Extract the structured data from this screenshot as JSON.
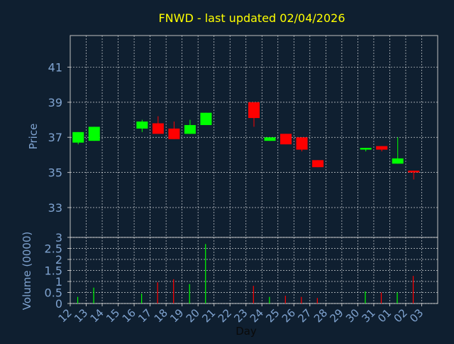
{
  "chart_data": [
    {
      "type": "candlestick",
      "title": "FNWD - last updated 02/04/2026",
      "xlabel": "",
      "ylabel": "Price",
      "ylim": [
        31.3,
        42.8
      ],
      "yticks": [
        33,
        35,
        37,
        39,
        41
      ],
      "grid": true,
      "colors": {
        "up": "#00ff00",
        "down": "#ff0000",
        "title": "#ffff00",
        "axis_text": "#7fa3d0",
        "grid": "#ffffff",
        "background": "#0f1f30"
      },
      "x": [
        "12",
        "13",
        "14",
        "15",
        "16",
        "17",
        "18",
        "19",
        "20",
        "21",
        "22",
        "23",
        "24",
        "25",
        "26",
        "27",
        "28",
        "29",
        "30",
        "31",
        "01",
        "02",
        "03"
      ],
      "candles": [
        {
          "x": "12",
          "open": 36.7,
          "high": 37.3,
          "low": 36.6,
          "close": 37.3
        },
        {
          "x": "13",
          "open": 36.8,
          "high": 37.6,
          "low": 36.8,
          "close": 37.6
        },
        {
          "x": "16",
          "open": 37.5,
          "high": 38.0,
          "low": 37.3,
          "close": 37.9
        },
        {
          "x": "17",
          "open": 37.8,
          "high": 38.2,
          "low": 37.2,
          "close": 37.2
        },
        {
          "x": "18",
          "open": 37.5,
          "high": 37.9,
          "low": 36.9,
          "close": 36.9
        },
        {
          "x": "19",
          "open": 37.2,
          "high": 38.0,
          "low": 37.2,
          "close": 37.7
        },
        {
          "x": "20",
          "open": 37.7,
          "high": 38.4,
          "low": 37.7,
          "close": 38.4
        },
        {
          "x": "23",
          "open": 39.0,
          "high": 39.0,
          "low": 37.6,
          "close": 38.1
        },
        {
          "x": "24",
          "open": 36.8,
          "high": 37.0,
          "low": 36.8,
          "close": 37.0
        },
        {
          "x": "25",
          "open": 37.2,
          "high": 37.2,
          "low": 36.6,
          "close": 36.6
        },
        {
          "x": "26",
          "open": 37.0,
          "high": 37.0,
          "low": 36.2,
          "close": 36.3
        },
        {
          "x": "27",
          "open": 35.7,
          "high": 35.7,
          "low": 35.3,
          "close": 35.3
        },
        {
          "x": "30",
          "open": 36.3,
          "high": 36.4,
          "low": 36.2,
          "close": 36.4
        },
        {
          "x": "31",
          "open": 36.5,
          "high": 36.5,
          "low": 36.2,
          "close": 36.3
        },
        {
          "x": "01",
          "open": 35.5,
          "high": 37.0,
          "low": 35.5,
          "close": 35.8
        },
        {
          "x": "02",
          "open": 35.1,
          "high": 35.1,
          "low": 34.6,
          "close": 35.0
        }
      ]
    },
    {
      "type": "bar",
      "xlabel": "Day",
      "ylabel": "Volume (0000)",
      "ylim": [
        0,
        3
      ],
      "yticks": [
        0,
        0.5,
        1,
        1.5,
        2,
        2.5,
        3
      ],
      "ytick_labels": [
        "0",
        "0.5",
        "1",
        "1.5",
        "2",
        "2.5",
        "3"
      ],
      "grid": true,
      "categories": [
        "12",
        "13",
        "14",
        "15",
        "16",
        "17",
        "18",
        "19",
        "20",
        "21",
        "22",
        "23",
        "24",
        "25",
        "26",
        "27",
        "28",
        "29",
        "30",
        "31",
        "01",
        "02",
        "03"
      ],
      "bars": [
        {
          "x": "12",
          "value": 0.3,
          "color": "#00ff00"
        },
        {
          "x": "13",
          "value": 0.72,
          "color": "#00ff00"
        },
        {
          "x": "16",
          "value": 0.45,
          "color": "#00ff00"
        },
        {
          "x": "17",
          "value": 0.96,
          "color": "#ff0000"
        },
        {
          "x": "18",
          "value": 1.1,
          "color": "#ff0000"
        },
        {
          "x": "19",
          "value": 0.88,
          "color": "#00ff00"
        },
        {
          "x": "20",
          "value": 2.7,
          "color": "#00ff00"
        },
        {
          "x": "23",
          "value": 0.8,
          "color": "#ff0000"
        },
        {
          "x": "24",
          "value": 0.3,
          "color": "#00ff00"
        },
        {
          "x": "25",
          "value": 0.35,
          "color": "#ff0000"
        },
        {
          "x": "26",
          "value": 0.3,
          "color": "#ff0000"
        },
        {
          "x": "27",
          "value": 0.25,
          "color": "#ff0000"
        },
        {
          "x": "30",
          "value": 0.55,
          "color": "#00ff00"
        },
        {
          "x": "31",
          "value": 0.5,
          "color": "#ff0000"
        },
        {
          "x": "01",
          "value": 0.5,
          "color": "#00ff00"
        },
        {
          "x": "02",
          "value": 1.25,
          "color": "#ff0000"
        }
      ]
    }
  ]
}
